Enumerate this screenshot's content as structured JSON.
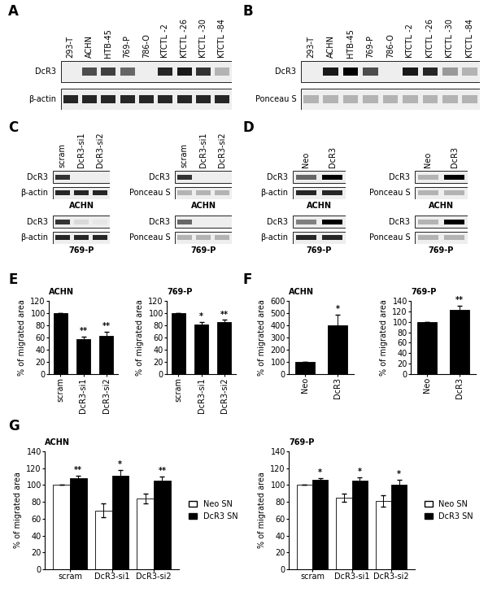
{
  "blot_panels": [
    {
      "label": "A",
      "blots": [
        {
          "lanes": [
            "293-T",
            "ACHN",
            "HTB-45",
            "769-P",
            "786-O",
            "KTCTL -2",
            "KTCTL -26",
            "KTCTL -30",
            "KTCTL -84"
          ],
          "rows": [
            {
              "label": "DcR3",
              "bands": [
                0,
                0.7,
                0.75,
                0.6,
                0,
                0.85,
                0.9,
                0.8,
                0.3
              ]
            },
            {
              "label": "β-actin",
              "bands": [
                0.85,
                0.85,
                0.85,
                0.85,
                0.85,
                0.85,
                0.85,
                0.85,
                0.85
              ]
            }
          ]
        }
      ]
    },
    {
      "label": "B",
      "blots": [
        {
          "lanes": [
            "293-T",
            "ACHN",
            "HTB-45",
            "769-P",
            "786-O",
            "KTCTL -2",
            "KTCTL -26",
            "KTCTL -30",
            "KTCTL -84"
          ],
          "rows": [
            {
              "label": "DcR3",
              "bands": [
                0,
                0.9,
                1.0,
                0.7,
                0,
                0.9,
                0.85,
                0.4,
                0.3
              ]
            },
            {
              "label": "Ponceau S",
              "bands": [
                0.3,
                0.3,
                0.3,
                0.3,
                0.3,
                0.3,
                0.3,
                0.3,
                0.3
              ]
            }
          ]
        }
      ]
    },
    {
      "label": "C",
      "blots": [
        {
          "lanes": [
            "scram",
            "DcR3-si1",
            "DcR3-si2"
          ],
          "caption": "ACHN",
          "rows": [
            {
              "label": "DcR3",
              "bands": [
                0.8,
                0,
                0
              ]
            },
            {
              "label": "β-actin",
              "bands": [
                0.85,
                0.85,
                0.85
              ]
            }
          ]
        },
        {
          "lanes": [
            "scram",
            "DcR3-si1",
            "DcR3-si2"
          ],
          "caption": "ACHN",
          "rows": [
            {
              "label": "DcR3",
              "bands": [
                0.8,
                0,
                0
              ]
            },
            {
              "label": "Ponceau S",
              "bands": [
                0.3,
                0.3,
                0.3
              ]
            }
          ]
        },
        {
          "caption": "769-P",
          "rows": [
            {
              "label": "DcR3",
              "bands": [
                0.8,
                0.15,
                0.1
              ]
            },
            {
              "label": "β-actin",
              "bands": [
                0.85,
                0.85,
                0.85
              ]
            }
          ]
        },
        {
          "caption": "769-P",
          "rows": [
            {
              "label": "DcR3",
              "bands": [
                0.6,
                0,
                0
              ]
            },
            {
              "label": "Ponceau S",
              "bands": [
                0.3,
                0.3,
                0.3
              ]
            }
          ]
        }
      ]
    },
    {
      "label": "D",
      "blots": [
        {
          "lanes": [
            "Neo",
            "DcR3"
          ],
          "caption": "ACHN",
          "rows": [
            {
              "label": "DcR3",
              "bands": [
                0.6,
                1.0
              ]
            },
            {
              "label": "β-actin",
              "bands": [
                0.85,
                0.85
              ]
            }
          ]
        },
        {
          "lanes": [
            "Neo",
            "DcR3"
          ],
          "caption": "ACHN",
          "rows": [
            {
              "label": "DcR3",
              "bands": [
                0.3,
                1.0
              ]
            },
            {
              "label": "Ponceau S",
              "bands": [
                0.3,
                0.3
              ]
            }
          ]
        },
        {
          "caption": "769-P",
          "rows": [
            {
              "label": "DcR3",
              "bands": [
                0.5,
                1.0
              ]
            },
            {
              "label": "β-actin",
              "bands": [
                0.85,
                0.85
              ]
            }
          ]
        },
        {
          "caption": "769-P",
          "rows": [
            {
              "label": "DcR3",
              "bands": [
                0.3,
                1.0
              ]
            },
            {
              "label": "Ponceau S",
              "bands": [
                0.3,
                0.3
              ]
            }
          ]
        }
      ]
    }
  ],
  "chart_data": [
    {
      "panel": "E",
      "type": "bar",
      "title": "ACHN",
      "ylabel": "% of migrated area",
      "categories": [
        "scram",
        "DcR3-si1",
        "DcR3-si2"
      ],
      "values": [
        100,
        57,
        63
      ],
      "error": [
        0,
        5,
        7
      ],
      "annotations": [
        null,
        "**",
        "**"
      ],
      "color": "#000000",
      "ylim": [
        0,
        120
      ],
      "yticks": [
        0,
        20,
        40,
        60,
        80,
        100,
        120
      ]
    },
    {
      "panel": "E",
      "type": "bar",
      "title": "769-P",
      "ylabel": "% of migrated area",
      "categories": [
        "scram",
        "DcR3-si1",
        "DcR3-si2"
      ],
      "values": [
        100,
        82,
        85
      ],
      "error": [
        0,
        4,
        4
      ],
      "annotations": [
        null,
        "*",
        "**"
      ],
      "color": "#000000",
      "ylim": [
        0,
        120
      ],
      "yticks": [
        0,
        20,
        40,
        60,
        80,
        100,
        120
      ]
    },
    {
      "panel": "F",
      "type": "bar",
      "title": "ACHN",
      "ylabel": "% of migrated area",
      "categories": [
        "Neo",
        "DcR3"
      ],
      "values": [
        100,
        400
      ],
      "error": [
        0,
        90
      ],
      "annotations": [
        null,
        "*"
      ],
      "color": "#000000",
      "ylim": [
        0,
        600
      ],
      "yticks": [
        0,
        100,
        200,
        300,
        400,
        500,
        600
      ]
    },
    {
      "panel": "F",
      "type": "bar",
      "title": "769-P",
      "ylabel": "% of migrated area",
      "categories": [
        "Neo",
        "DcR3"
      ],
      "values": [
        100,
        123
      ],
      "error": [
        0,
        8
      ],
      "annotations": [
        null,
        "**"
      ],
      "color": "#000000",
      "ylim": [
        0,
        140
      ],
      "yticks": [
        0,
        20,
        40,
        60,
        80,
        100,
        120,
        140
      ]
    },
    {
      "panel": "G",
      "type": "bar",
      "title": "ACHN",
      "ylabel": "% of migrated area",
      "categories": [
        "scram",
        "DcR3-si1",
        "DcR3-si2"
      ],
      "legend": "right",
      "series": [
        {
          "name": "Neo SN",
          "color": "#ffffff",
          "values": [
            100,
            70,
            84
          ],
          "error": [
            0,
            8,
            6
          ]
        },
        {
          "name": "DcR3 SN",
          "color": "#000000",
          "values": [
            108,
            111,
            105
          ],
          "error": [
            3,
            7,
            5
          ],
          "annotations": [
            "**",
            "*",
            "**"
          ]
        }
      ],
      "ylim": [
        0,
        140
      ],
      "yticks": [
        0,
        20,
        40,
        60,
        80,
        100,
        120,
        140
      ]
    },
    {
      "panel": "G",
      "type": "bar",
      "title": "769-P",
      "ylabel": "% of migrated area",
      "categories": [
        "scram",
        "DcR3-si1",
        "DcR3-si2"
      ],
      "legend": "right",
      "series": [
        {
          "name": "Neo SN",
          "color": "#ffffff",
          "values": [
            100,
            85,
            81
          ],
          "error": [
            0,
            5,
            7
          ]
        },
        {
          "name": "DcR3 SN",
          "color": "#000000",
          "values": [
            106,
            105,
            100
          ],
          "error": [
            2,
            4,
            6
          ],
          "annotations": [
            "*",
            "*",
            "*"
          ]
        }
      ],
      "ylim": [
        0,
        140
      ],
      "yticks": [
        0,
        20,
        40,
        60,
        80,
        100,
        120,
        140
      ]
    }
  ]
}
